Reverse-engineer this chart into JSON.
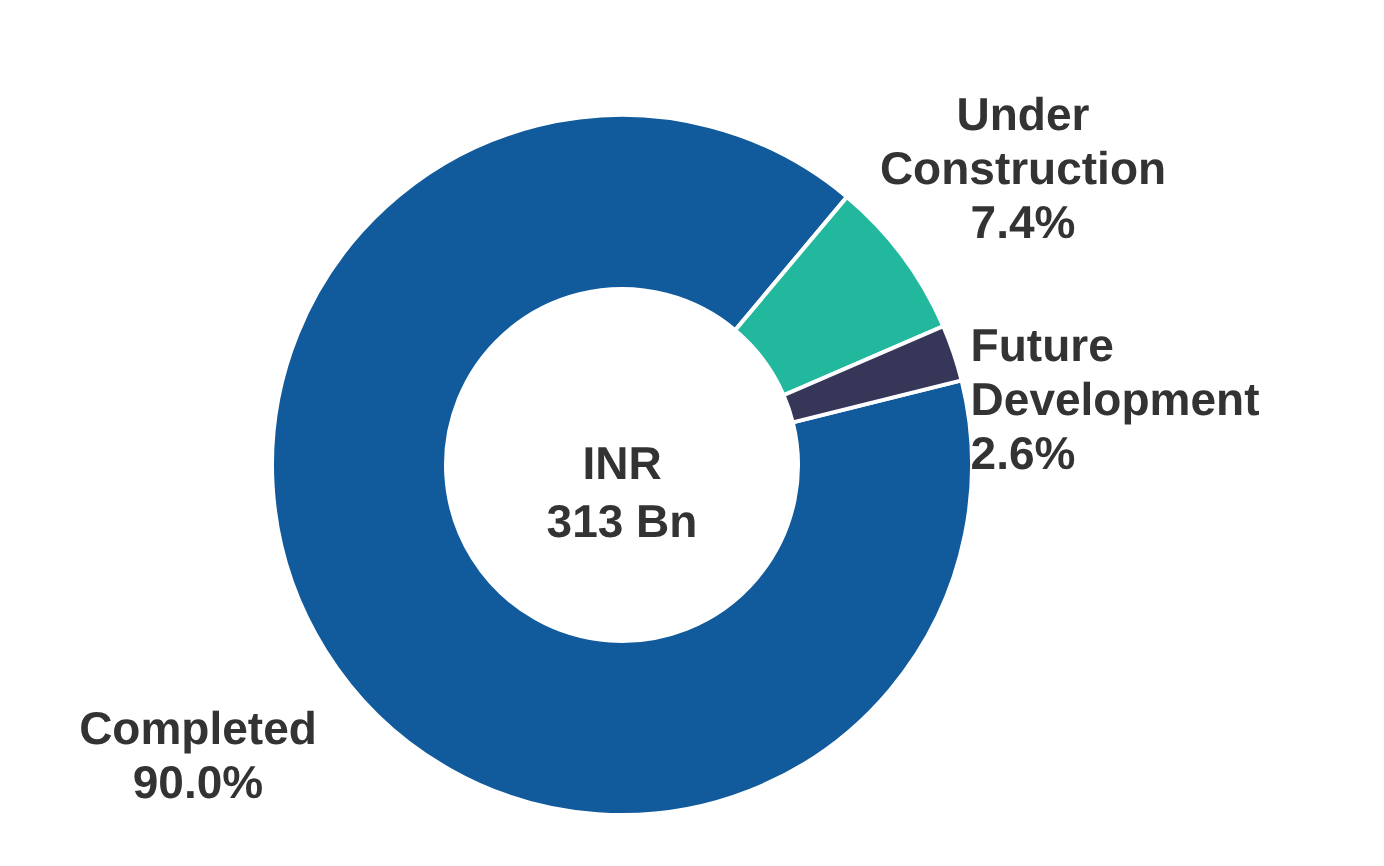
{
  "chart_data": {
    "type": "donut",
    "categories": [
      "Completed",
      "Under Construction",
      "Future Development"
    ],
    "values": [
      90.0,
      7.4,
      2.6
    ],
    "value_labels": [
      "90.0%",
      "7.4%",
      "2.6%"
    ],
    "colors": [
      "#115a9b",
      "#22b89d",
      "#363659"
    ],
    "annotations": [
      "INR",
      "313 Bn"
    ],
    "legend": false
  }
}
